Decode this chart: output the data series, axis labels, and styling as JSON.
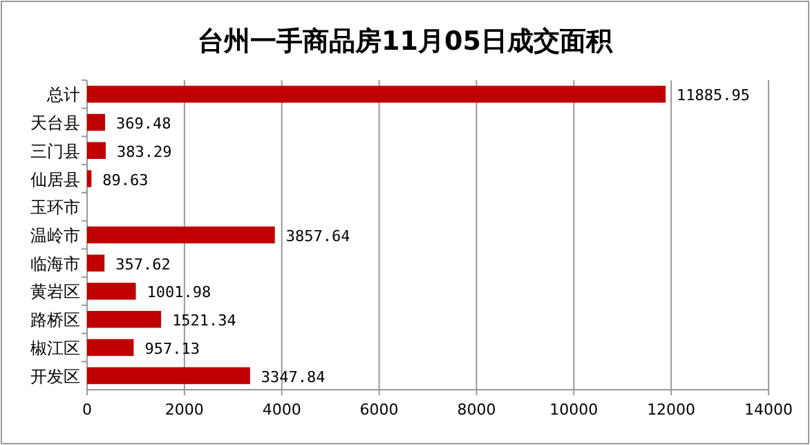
{
  "chart_data": {
    "type": "bar",
    "orientation": "horizontal",
    "title": "台州一手商品房11月05日成交面积",
    "categories": [
      "总计",
      "天台县",
      "三门县",
      "仙居县",
      "玉环市",
      "温岭市",
      "临海市",
      "黄岩区",
      "路桥区",
      "椒江区",
      "开发区"
    ],
    "values": [
      11885.95,
      369.48,
      383.29,
      89.63,
      null,
      3857.64,
      357.62,
      1001.98,
      1521.34,
      957.13,
      3347.84
    ],
    "color": "#c00000",
    "data_labels": true,
    "xlim": [
      0,
      14000
    ],
    "xticks": [
      0,
      2000,
      4000,
      6000,
      8000,
      10000,
      12000,
      14000
    ],
    "grid": "x"
  }
}
